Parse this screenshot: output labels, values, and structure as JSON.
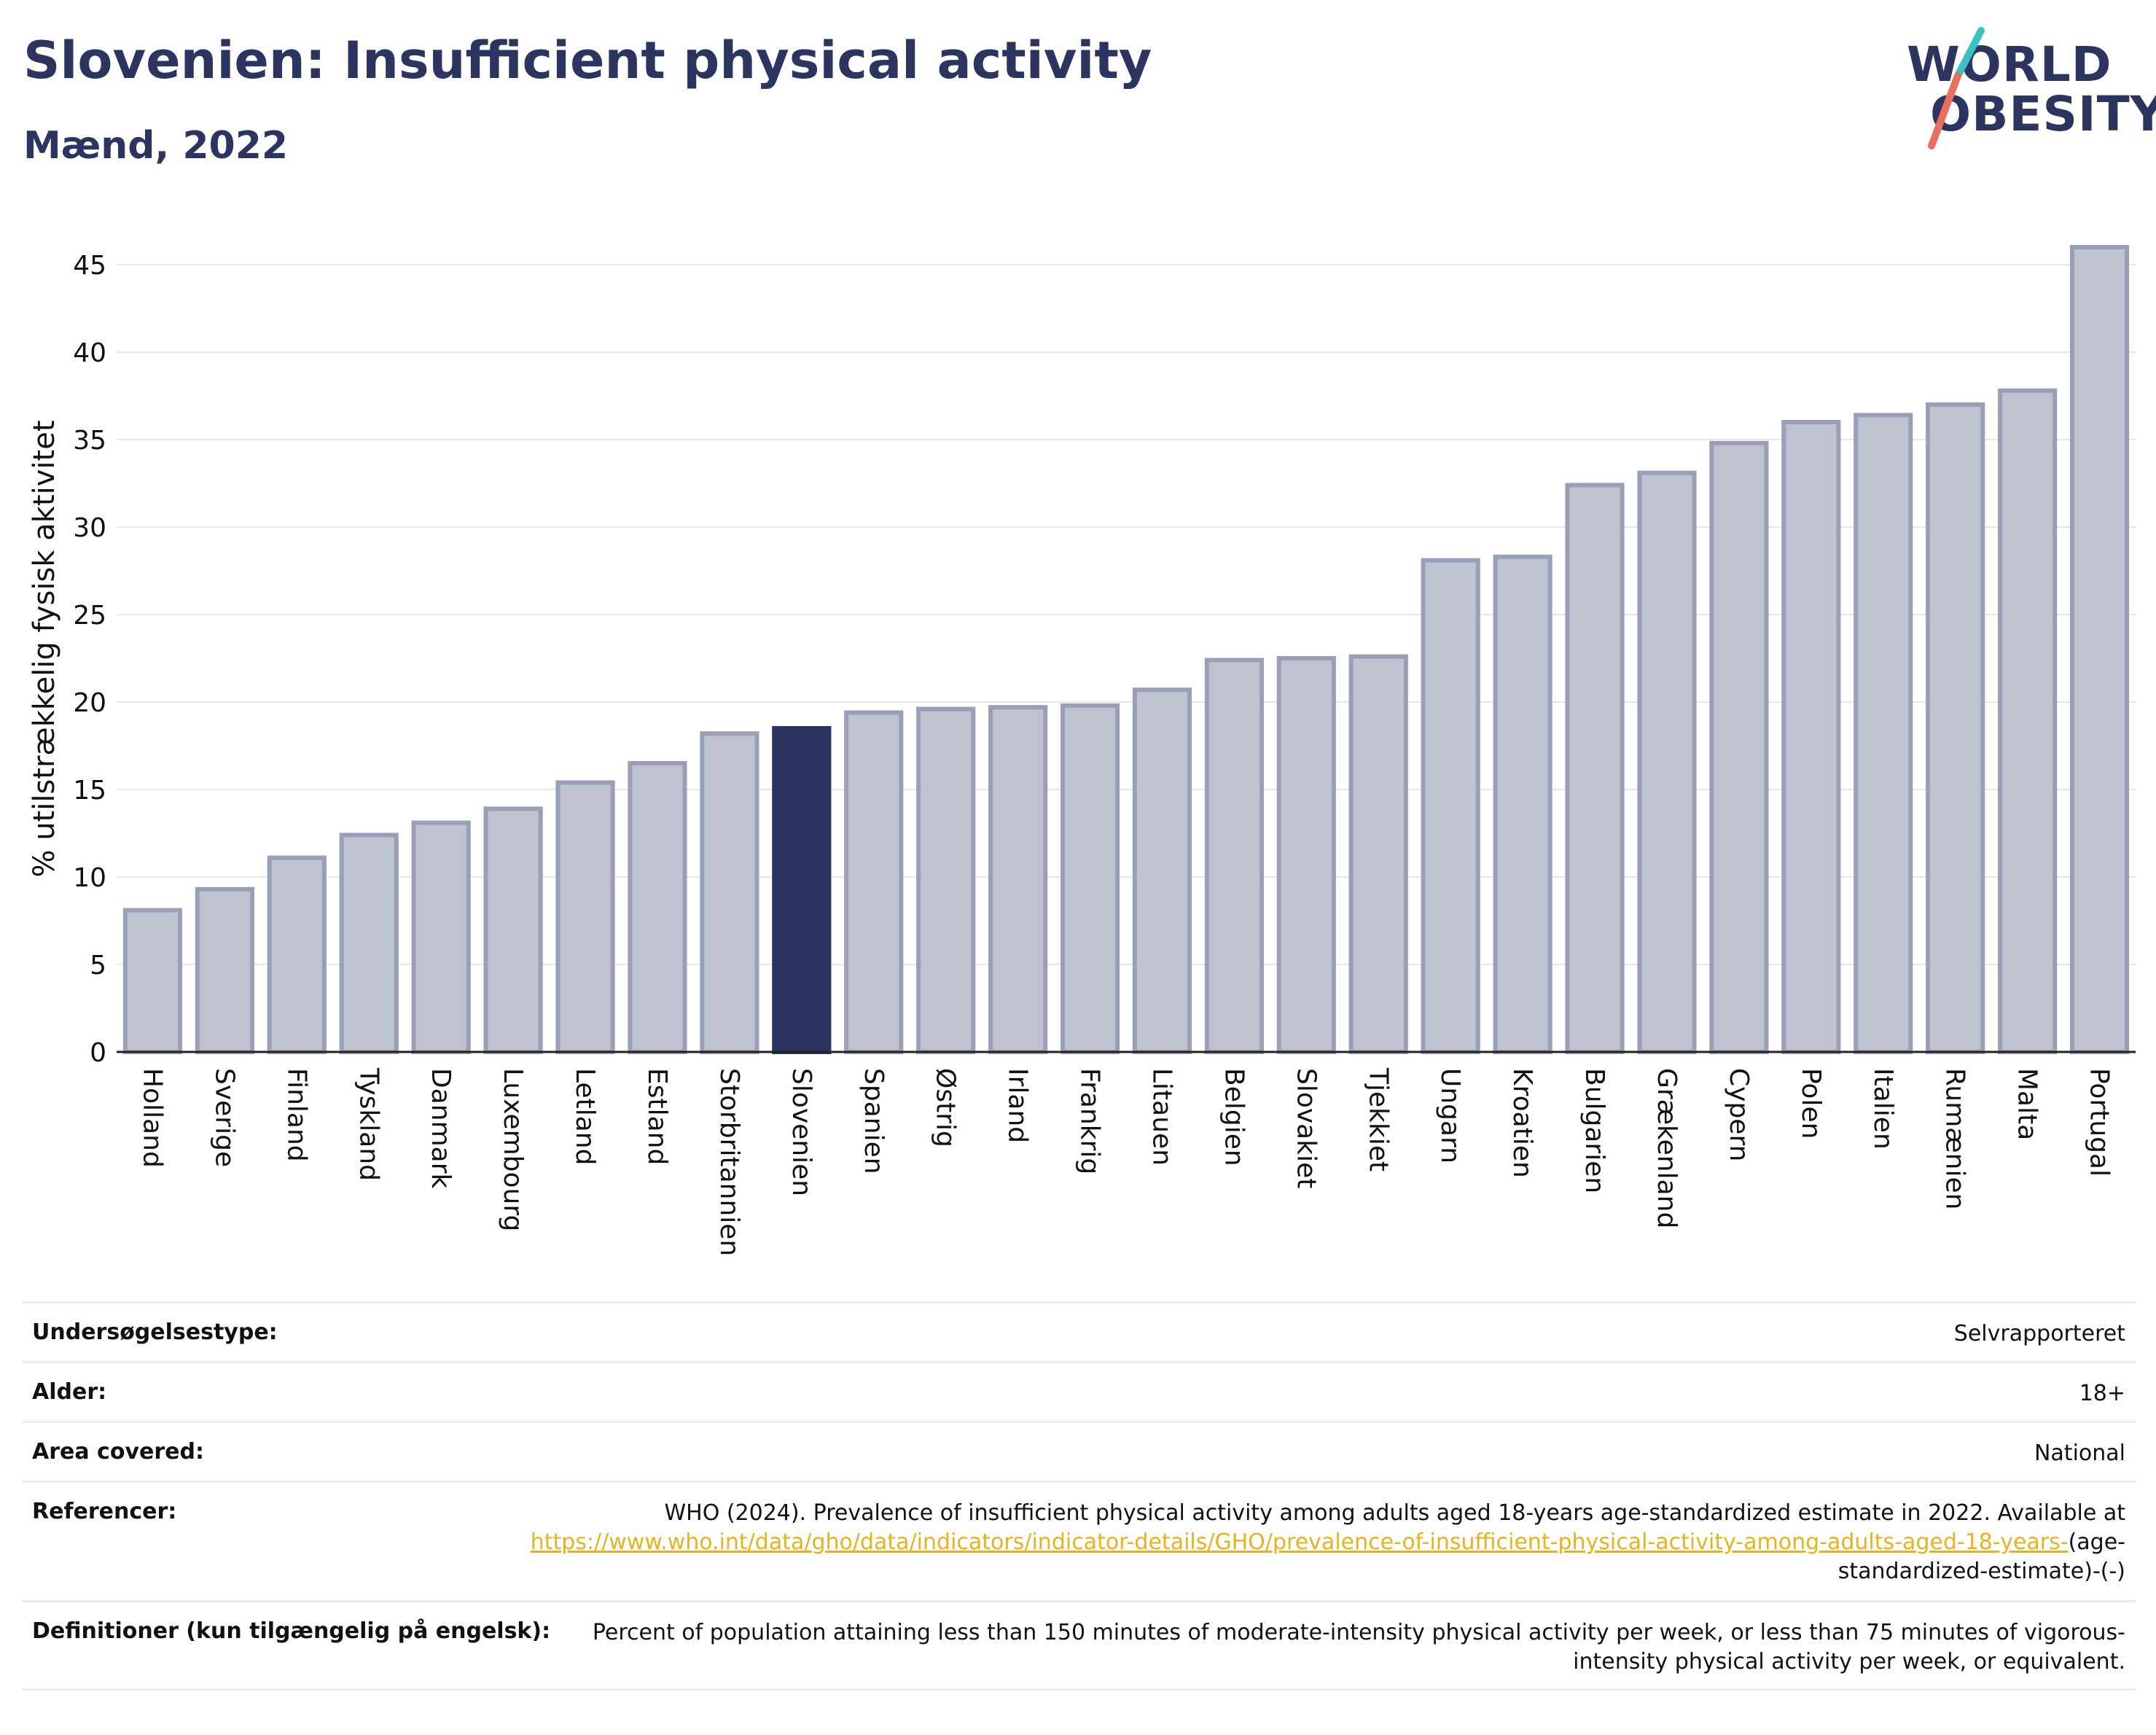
{
  "header": {
    "title": "Slovenien: Insufficient physical activity",
    "subtitle": "Mænd, 2022"
  },
  "logo": {
    "line1": "WORLD",
    "line2": "OBESITY"
  },
  "colors": {
    "highlight": "#2b3560",
    "bar": "#bfc2cf",
    "bar_border": "#9a9fb8",
    "link": "#e8b21e",
    "accent_teal": "#3cc1c2",
    "accent_red": "#e8705c"
  },
  "chart_data": {
    "type": "bar",
    "title": "Slovenien: Insufficient physical activity",
    "subtitle": "Mænd, 2022",
    "xlabel": "",
    "ylabel": "% utilstrækkelig fysisk aktivitet",
    "ylim": [
      0,
      47
    ],
    "yticks": [
      0,
      5,
      10,
      15,
      20,
      25,
      30,
      35,
      40,
      45
    ],
    "grid": true,
    "highlight": "Slovenien",
    "categories": [
      "Holland",
      "Sverige",
      "Finland",
      "Tyskland",
      "Danmark",
      "Luxembourg",
      "Letland",
      "Estland",
      "Storbritannien",
      "Slovenien",
      "Spanien",
      "Østrig",
      "Irland",
      "Frankrig",
      "Litauen",
      "Belgien",
      "Slovakiet",
      "Tjekkiet",
      "Ungarn",
      "Kroatien",
      "Bulgarien",
      "Grækenland",
      "Cypern",
      "Polen",
      "Italien",
      "Rumænien",
      "Malta",
      "Portugal"
    ],
    "values": [
      8.1,
      9.3,
      11.1,
      12.4,
      13.1,
      13.9,
      15.4,
      16.5,
      18.2,
      18.5,
      19.4,
      19.6,
      19.7,
      19.8,
      20.7,
      22.4,
      22.5,
      22.6,
      28.1,
      28.3,
      32.4,
      33.1,
      34.8,
      36.0,
      36.4,
      37.0,
      37.8,
      46.0
    ]
  },
  "meta": {
    "survey_label": "Undersøgelsestype:",
    "survey_value": "Selvrapporteret",
    "age_label": "Alder:",
    "age_value": "18+",
    "area_label": "Area covered:",
    "area_value": "National",
    "refs_label": "Referencer:",
    "refs_text": "WHO (2024). Prevalence of insufficient physical activity among adults aged 18-years age-standardized estimate in 2022. Available at",
    "refs_link": "https://www.who.int/data/gho/data/indicators/indicator-details/GHO/prevalence-of-insufficient-physical-activity-among-adults-aged-18-years-",
    "refs_tail": "(age-standardized-estimate)-(-)",
    "def_label": "Definitioner (kun tilgængelig på engelsk):",
    "def_value": "Percent of population attaining less than 150 minutes of moderate-intensity physical activity per week, or less than 75 minutes of vigorous-intensity physical activity per week, or equivalent."
  }
}
